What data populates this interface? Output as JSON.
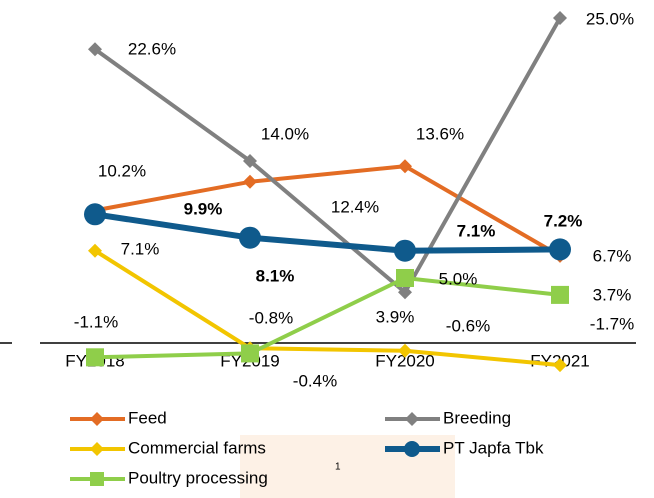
{
  "chart_data": {
    "type": "line",
    "categories": [
      "FY2018",
      "FY2019",
      "FY2020",
      "FY2021"
    ],
    "ylim": [
      -4,
      26
    ],
    "legend": "bottom",
    "footnote": "1",
    "series": [
      {
        "name": "Feed",
        "color": "#e36c24",
        "marker": "diamond",
        "values": [
          10.2,
          12.4,
          13.6,
          6.7
        ],
        "value_labels": [
          "10.2%",
          "12.4%",
          "13.6%",
          "6.7%"
        ]
      },
      {
        "name": "Breeding",
        "color": "#808080",
        "marker": "diamond",
        "values": [
          22.6,
          14.0,
          3.9,
          25.0
        ],
        "value_labels": [
          "22.6%",
          "14.0%",
          "3.9%",
          "25.0%"
        ]
      },
      {
        "name": "Commercial farms",
        "color": "#f2c500",
        "marker": "diamond",
        "values": [
          7.1,
          -0.4,
          -0.6,
          -1.7
        ],
        "value_labels": [
          "7.1%",
          "-0.4%",
          "-0.6%",
          "-1.7%"
        ]
      },
      {
        "name": "PT Japfa Tbk",
        "color": "#0f5a8c",
        "marker": "circle",
        "bold_labels": true,
        "values": [
          9.9,
          8.1,
          7.1,
          7.2
        ],
        "value_labels": [
          "9.9%",
          "8.1%",
          "7.1%",
          "7.2%"
        ]
      },
      {
        "name": "Poultry processing",
        "color": "#8fce4a",
        "marker": "square",
        "values": [
          -1.1,
          -0.8,
          5.0,
          3.7
        ],
        "value_labels": [
          "-1.1%",
          "-0.8%",
          "5.0%",
          "3.7%"
        ]
      }
    ]
  }
}
